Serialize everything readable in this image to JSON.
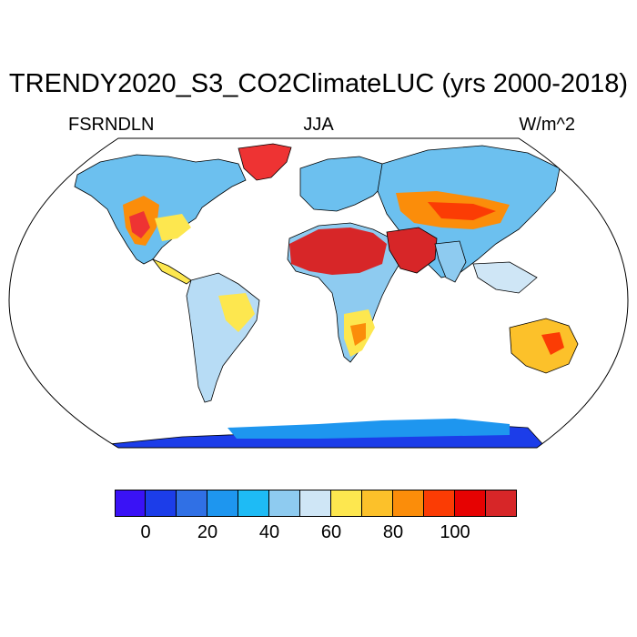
{
  "title": "TRENDY2020_S3_CO2ClimateLUC (yrs 2000-2018)",
  "left_label": "FSRNDLN",
  "center_label": "JJA",
  "right_label": "W/m^2",
  "colorbar": {
    "colors": [
      "#3a12f6",
      "#1c3de9",
      "#3070e5",
      "#1e96ef",
      "#1ebbf5",
      "#8ecbf0",
      "#cfe6f6",
      "#fde74f",
      "#fcc12a",
      "#fb8d0a",
      "#fb3c04",
      "#e60202",
      "#d72628"
    ],
    "tick_labels": [
      "0",
      "20",
      "40",
      "60",
      "80",
      "100"
    ]
  },
  "map": {
    "projection": "robinson",
    "ocean_color": "#ffffff",
    "outline_color": "#000000"
  }
}
